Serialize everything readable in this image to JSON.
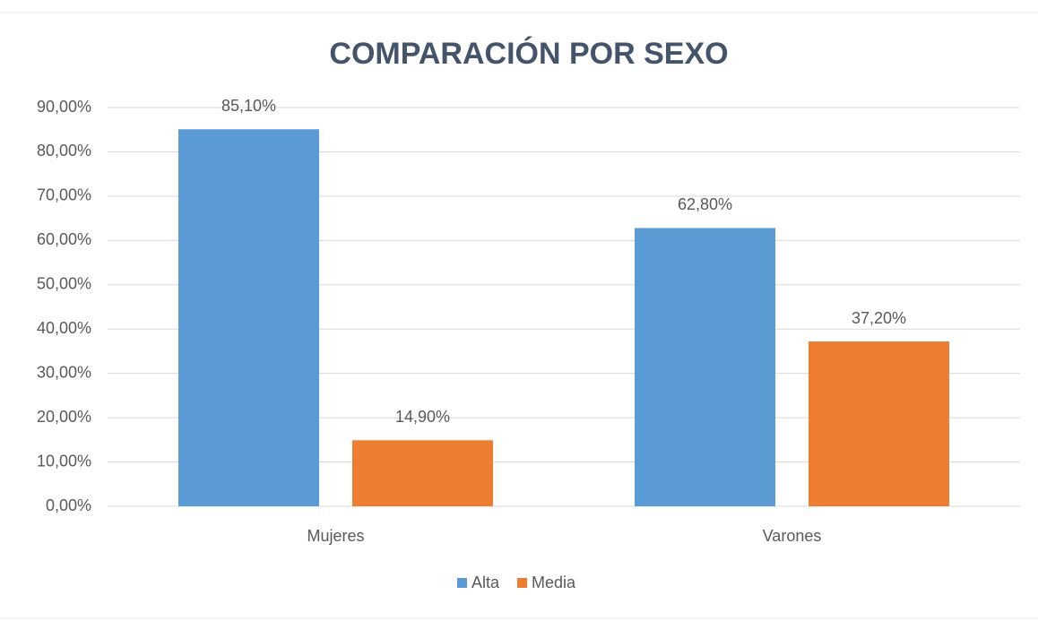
{
  "chart_data": {
    "type": "bar",
    "title": "COMPARACIÓN POR SEXO",
    "categories": [
      "Mujeres",
      "Varones"
    ],
    "series": [
      {
        "name": "Alta",
        "color": "#5b9bd5",
        "values": [
          85.1,
          62.8
        ],
        "value_labels": [
          "85,10%",
          "62,80%"
        ]
      },
      {
        "name": "Media",
        "color": "#ed7d31",
        "values": [
          14.9,
          37.2
        ],
        "value_labels": [
          "14,90%",
          "37,20%"
        ]
      }
    ],
    "ylim": [
      0,
      90
    ],
    "yticks": [
      {
        "value": 0,
        "label": "0,00%"
      },
      {
        "value": 10,
        "label": "10,00%"
      },
      {
        "value": 20,
        "label": "20,00%"
      },
      {
        "value": 30,
        "label": "30,00%"
      },
      {
        "value": 40,
        "label": "40,00%"
      },
      {
        "value": 50,
        "label": "50,00%"
      },
      {
        "value": 60,
        "label": "60,00%"
      },
      {
        "value": 70,
        "label": "70,00%"
      },
      {
        "value": 80,
        "label": "80,00%"
      },
      {
        "value": 90,
        "label": "90,00%"
      }
    ],
    "grid": true,
    "legend": "bottom"
  }
}
